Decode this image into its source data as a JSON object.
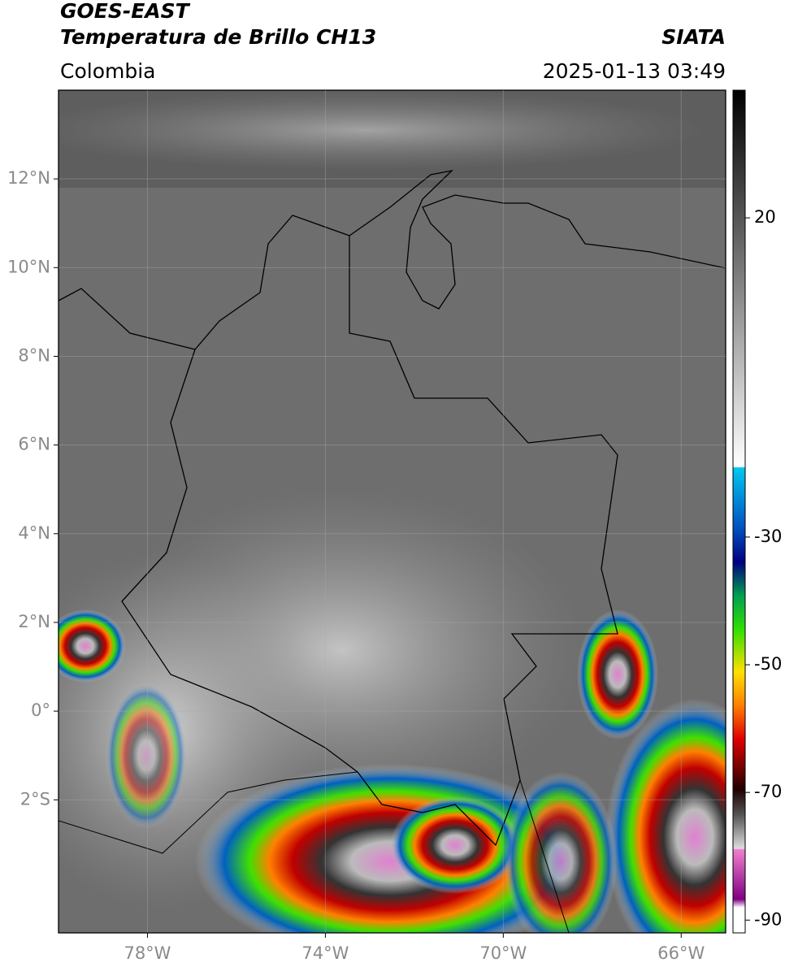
{
  "header": {
    "title": "GOES-EAST",
    "subtitle": "Temperatura de Brillo CH13",
    "source": "SIATA",
    "region": "Colombia",
    "timestamp": "2025-01-13 03:49"
  },
  "map": {
    "xlim": [
      -80,
      -65
    ],
    "ylim": [
      -5,
      14
    ],
    "grid": true,
    "xticks": [
      {
        "value": -78,
        "label": "78°W"
      },
      {
        "value": -74,
        "label": "74°W"
      },
      {
        "value": -70,
        "label": "70°W"
      },
      {
        "value": -66,
        "label": "66°W"
      }
    ],
    "yticks": [
      {
        "value": 12,
        "label": "12°N"
      },
      {
        "value": 10,
        "label": "10°N"
      },
      {
        "value": 8,
        "label": "8°N"
      },
      {
        "value": 6,
        "label": "6°N"
      },
      {
        "value": 4,
        "label": "4°N"
      },
      {
        "value": 2,
        "label": "2°N"
      },
      {
        "value": 0,
        "label": "0°"
      },
      {
        "value": -2,
        "label": "2°S"
      }
    ]
  },
  "colorbar": {
    "lim": [
      -92,
      40
    ],
    "ticks": [
      20,
      -30,
      -50,
      -70,
      -90
    ]
  }
}
